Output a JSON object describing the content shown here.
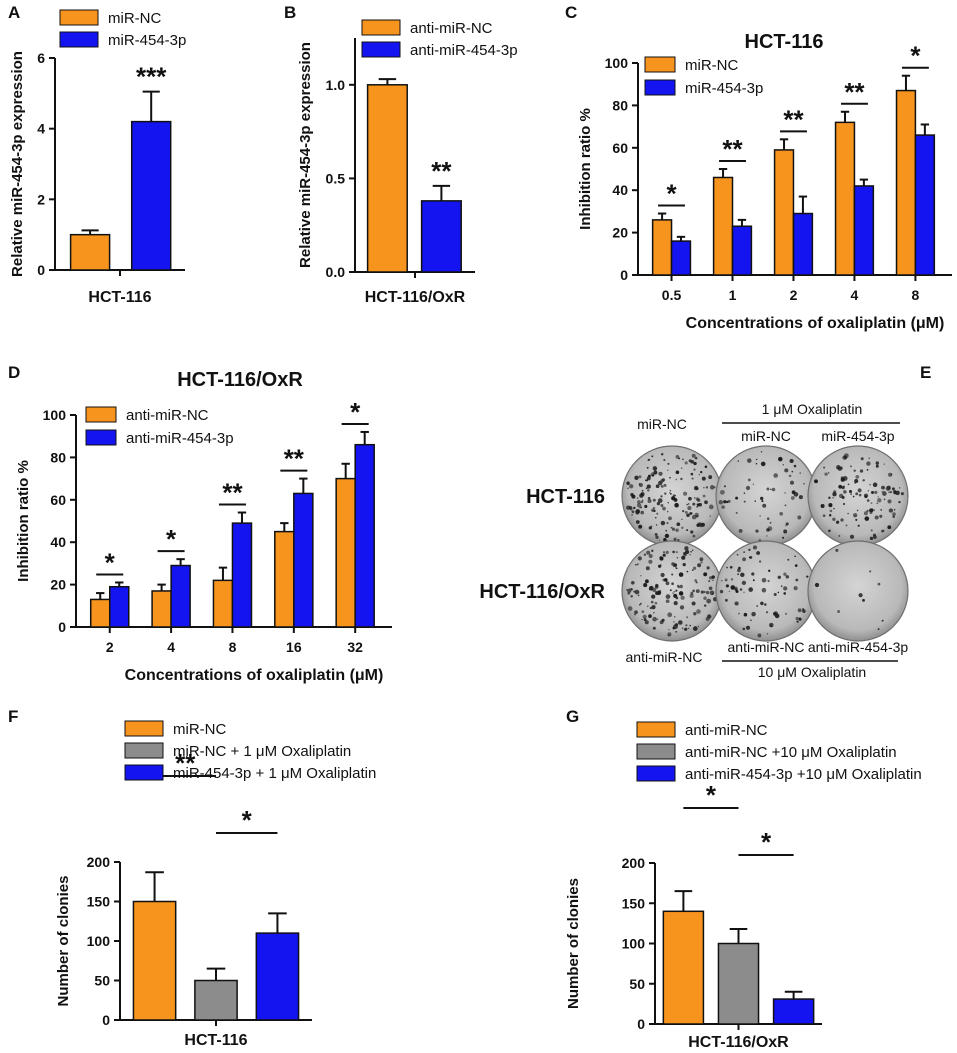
{
  "colors": {
    "orange": "#F7941D",
    "blue": "#1414F0",
    "gray": "#8C8C8C",
    "axis": "#111111"
  },
  "chart_data": [
    {
      "panel": "A",
      "type": "bar",
      "title": "",
      "categories": [
        "miR-NC",
        "miR-454-3p"
      ],
      "values": [
        1.0,
        4.2
      ],
      "errors": [
        0.12,
        0.85
      ],
      "colors": [
        "orange",
        "blue"
      ],
      "xlabel": "HCT-116",
      "ylabel": "Relative miR-454-3p expression",
      "ylim": [
        0,
        6
      ],
      "yticks": [
        "0",
        "2",
        "4",
        "6"
      ],
      "ytick_values": [
        0,
        2,
        4,
        6
      ],
      "legend": [
        "miR-NC",
        "miR-454-3p"
      ],
      "significance": [
        "***"
      ]
    },
    {
      "panel": "B",
      "type": "bar",
      "title": "",
      "categories": [
        "anti-miR-NC",
        "anti-miR-454-3p"
      ],
      "values": [
        1.0,
        0.38
      ],
      "errors": [
        0.03,
        0.08
      ],
      "colors": [
        "orange",
        "blue"
      ],
      "xlabel": "HCT-116/OxR",
      "ylabel": "Relative miR-454-3p expression",
      "ylim": [
        0,
        1.25
      ],
      "yticks": [
        "0.0",
        "0.5",
        "1.0"
      ],
      "ytick_values": [
        0,
        0.5,
        1.0
      ],
      "legend": [
        "anti-miR-NC",
        "anti-miR-454-3p"
      ],
      "significance": [
        "**"
      ]
    },
    {
      "panel": "C",
      "type": "bar",
      "title": "HCT-116",
      "categories": [
        "0.5",
        "1",
        "2",
        "4",
        "8"
      ],
      "series": [
        {
          "name": "miR-NC",
          "color": "orange",
          "values": [
            26,
            46,
            59,
            72,
            87
          ],
          "errors": [
            3,
            4,
            5,
            5,
            7
          ]
        },
        {
          "name": "miR-454-3p",
          "color": "blue",
          "values": [
            16,
            23,
            29,
            42,
            66
          ],
          "errors": [
            2,
            3,
            8,
            3,
            5
          ]
        }
      ],
      "xlabel": "Concentrations of oxaliplatin (μM)",
      "ylabel": "Inhibition ratio %",
      "ylim": [
        0,
        100
      ],
      "yticks": [
        "0",
        "20",
        "40",
        "60",
        "80",
        "100"
      ],
      "ytick_values": [
        0,
        20,
        40,
        60,
        80,
        100
      ],
      "significance": [
        "*",
        "**",
        "**",
        "**",
        "*"
      ]
    },
    {
      "panel": "D",
      "type": "bar",
      "title": "HCT-116/OxR",
      "categories": [
        "2",
        "4",
        "8",
        "16",
        "32"
      ],
      "series": [
        {
          "name": "anti-miR-NC",
          "color": "orange",
          "values": [
            13,
            17,
            22,
            45,
            70
          ],
          "errors": [
            3,
            3,
            6,
            4,
            7
          ]
        },
        {
          "name": "anti-miR-454-3p",
          "color": "blue",
          "values": [
            19,
            29,
            49,
            63,
            86
          ],
          "errors": [
            2,
            3,
            5,
            7,
            6
          ]
        }
      ],
      "xlabel": "Concentrations of oxaliplatin (μM)",
      "ylabel": "Inhibition ratio %",
      "ylim": [
        0,
        100
      ],
      "yticks": [
        "0",
        "20",
        "40",
        "60",
        "80",
        "100"
      ],
      "ytick_values": [
        0,
        20,
        40,
        60,
        80,
        100
      ],
      "significance": [
        "*",
        "*",
        "**",
        "**",
        "*"
      ]
    },
    {
      "panel": "F",
      "type": "bar",
      "title": "",
      "categories": [
        "miR-NC",
        "miR-NC + 1 μM Oxaliplatin",
        "miR-454-3p + 1 μM Oxaliplatin"
      ],
      "values": [
        150,
        50,
        110
      ],
      "errors": [
        37,
        15,
        25
      ],
      "colors": [
        "orange",
        "gray",
        "blue"
      ],
      "xlabel": "HCT-116",
      "ylabel": "Number of clonies",
      "ylim": [
        0,
        200
      ],
      "yticks": [
        "0",
        "50",
        "100",
        "150",
        "200"
      ],
      "ytick_values": [
        0,
        50,
        100,
        150,
        200
      ],
      "legend": [
        "miR-NC",
        "miR-NC + 1 μM Oxaliplatin",
        "miR-454-3p + 1 μM Oxaliplatin"
      ],
      "significance": [
        "**",
        "*"
      ]
    },
    {
      "panel": "G",
      "type": "bar",
      "title": "",
      "categories": [
        "anti-miR-NC",
        "anti-miR-NC +10 μM Oxaliplatin",
        "anti-miR-454-3p +10 μM Oxaliplatin"
      ],
      "values": [
        140,
        100,
        31
      ],
      "errors": [
        25,
        18,
        9
      ],
      "colors": [
        "orange",
        "gray",
        "blue"
      ],
      "xlabel": "HCT-116/OxR",
      "ylabel": "Number of clonies",
      "ylim": [
        0,
        200
      ],
      "yticks": [
        "0",
        "50",
        "100",
        "150",
        "200"
      ],
      "ytick_values": [
        0,
        50,
        100,
        150,
        200
      ],
      "legend": [
        "anti-miR-NC",
        "anti-miR-NC +10 μM Oxaliplatin",
        "anti-miR-454-3p +10 μM Oxaliplatin"
      ],
      "significance": [
        "*",
        "*"
      ]
    }
  ],
  "panel_e": {
    "label": "E",
    "top_header": "1 μM Oxaliplatin",
    "bottom_header": "10 μM Oxaliplatin",
    "top_col_labels": [
      "miR-NC",
      "miR-NC",
      "miR-454-3p"
    ],
    "bottom_col_labels": [
      "anti-miR-NC",
      "anti-miR-NC",
      "anti-miR-454-3p"
    ],
    "row_labels": [
      "HCT-116",
      "HCT-116/OxR"
    ],
    "colony_density": [
      [
        1.0,
        0.35,
        0.7
      ],
      [
        0.9,
        0.45,
        0.05
      ]
    ]
  }
}
